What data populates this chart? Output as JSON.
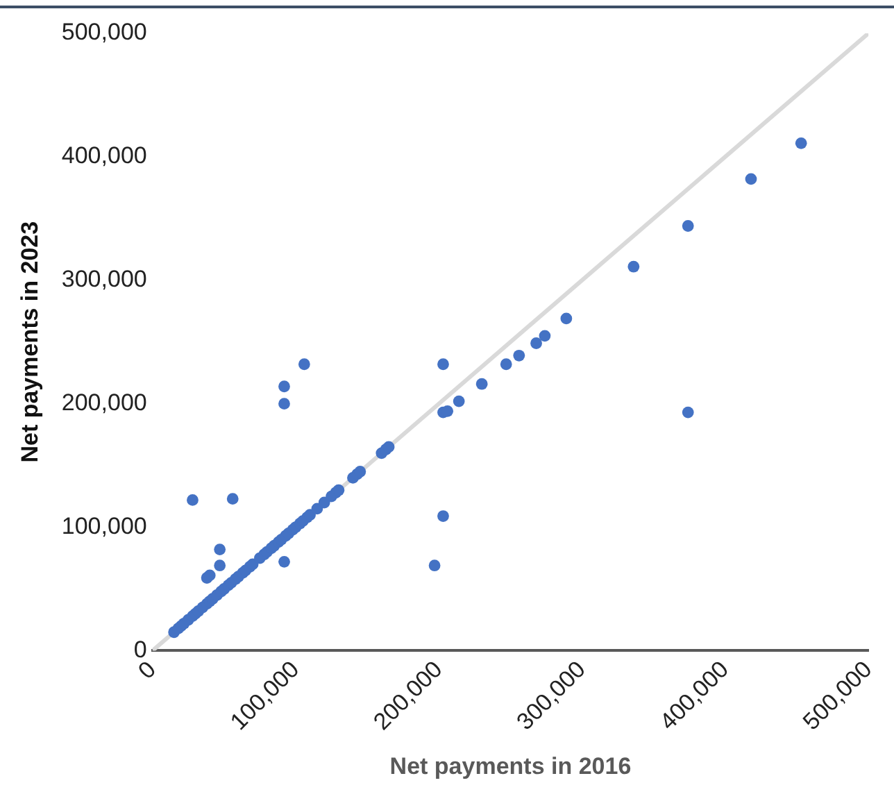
{
  "chart_data": {
    "type": "scatter",
    "xlabel": "Net payments in 2016",
    "ylabel": "Net payments in 2023",
    "xlim": [
      0,
      500000
    ],
    "ylim": [
      0,
      500000
    ],
    "xticks": [
      0,
      {
        "value": 100000,
        "label": "100,000"
      },
      {
        "value": 200000,
        "label": "200,000"
      },
      {
        "value": 300000,
        "label": "300,000"
      },
      {
        "value": 400000,
        "label": "400,000"
      },
      {
        "value": 500000,
        "label": "500,000"
      }
    ],
    "yticks": [
      0,
      {
        "value": 100000,
        "label": "100,000"
      },
      {
        "value": 200000,
        "label": "200,000"
      },
      {
        "value": 300000,
        "label": "300,000"
      },
      {
        "value": 400000,
        "label": "400,000"
      },
      {
        "value": 500000,
        "label": "500,000"
      }
    ],
    "legend": false,
    "series": [
      {
        "type": "line",
        "color": "#d9d9d9",
        "marker": "none",
        "x": [
          0,
          500000
        ],
        "values": [
          0,
          500000
        ]
      },
      {
        "type": "scatter",
        "color": "#4472c4",
        "marker": "circle",
        "x": [
          15000,
          18000,
          20000,
          22000,
          25000,
          28000,
          30000,
          32000,
          35000,
          38000,
          40000,
          42000,
          45000,
          48000,
          50000,
          53000,
          55000,
          58000,
          60000,
          63000,
          65000,
          68000,
          70000,
          75000,
          78000,
          80000,
          83000,
          85000,
          88000,
          90000,
          93000,
          95000,
          98000,
          100000,
          103000,
          105000,
          108000,
          110000,
          115000,
          120000,
          125000,
          128000,
          130000,
          140000,
          143000,
          145000,
          160000,
          163000,
          165000,
          28000,
          56000,
          47000,
          47000,
          38000,
          40000,
          106000,
          92000,
          92000,
          92000,
          203000,
          203000,
          197000,
          203000,
          206000,
          214000,
          230000,
          247000,
          256000,
          268000,
          274000,
          289000,
          336000,
          374000,
          418000,
          453000,
          374000
        ],
        "values": [
          15000,
          18000,
          20000,
          22000,
          25000,
          28000,
          30000,
          32000,
          35000,
          38000,
          40000,
          42000,
          45000,
          48000,
          50000,
          53000,
          55000,
          58000,
          60000,
          63000,
          65000,
          68000,
          70000,
          75000,
          78000,
          80000,
          83000,
          85000,
          88000,
          90000,
          93000,
          95000,
          98000,
          100000,
          103000,
          105000,
          108000,
          110000,
          115000,
          120000,
          125000,
          128000,
          130000,
          140000,
          143000,
          145000,
          160000,
          163000,
          165000,
          122000,
          123000,
          82000,
          69000,
          59000,
          61000,
          232000,
          214000,
          200000,
          72000,
          232000,
          109000,
          69000,
          193000,
          194000,
          202000,
          216000,
          232000,
          239000,
          249000,
          255000,
          269000,
          311000,
          344000,
          382000,
          411000,
          193000
        ]
      }
    ]
  }
}
